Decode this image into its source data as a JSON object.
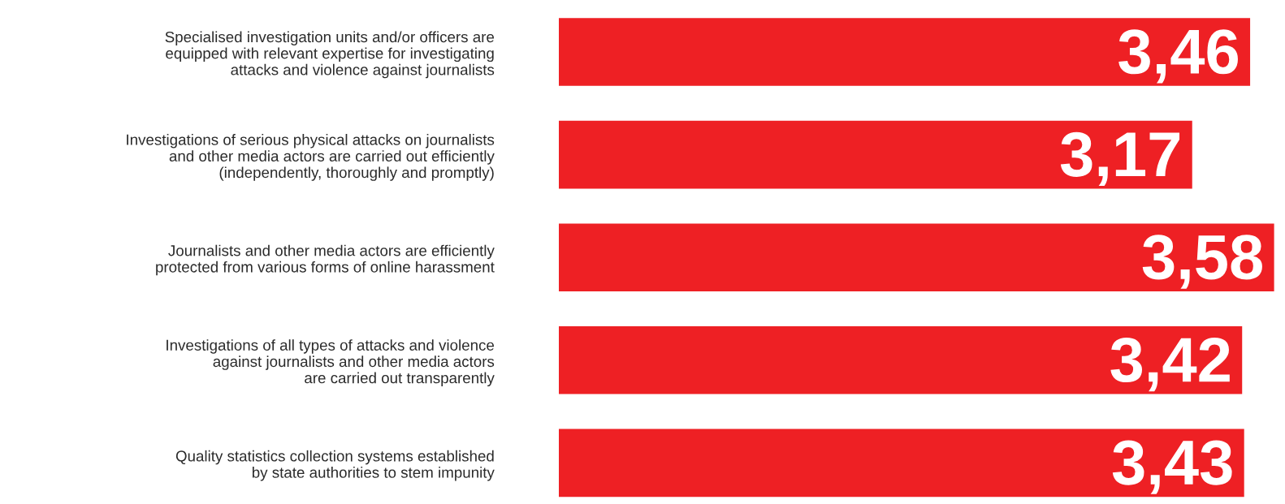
{
  "chart_data": {
    "type": "bar",
    "orientation": "horizontal",
    "categories": [
      "Specialised investigation units and/or officers are\nequipped with relevant expertise for investigating\nattacks and violence against journalists",
      "Investigations of serious physical attacks on journalists\nand other media actors are carried out efficiently\n(independently, thoroughly and promptly)",
      "Journalists and other media actors are efficiently\nprotected from various forms of online harassment",
      "Investigations of all types of attacks and violence\nagainst journalists and other media actors\nare carried out transparently",
      "Quality statistics collection systems established\nby state authorities to stem impunity"
    ],
    "values": [
      3.46,
      3.17,
      3.58,
      3.42,
      3.43
    ],
    "value_labels": [
      "3,46",
      "3,17",
      "3,58",
      "3,42",
      "3,43"
    ],
    "color": "#ee2024",
    "grid": false,
    "legend": false
  }
}
